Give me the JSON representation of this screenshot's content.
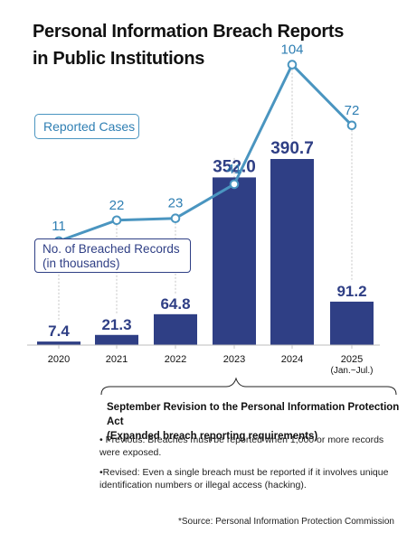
{
  "title": {
    "line1": "Personal Information Breach Reports",
    "line2": "in Public Institutions"
  },
  "legend": {
    "line_label": "Reported Cases",
    "bar_label_line1": "No. of Breached Records",
    "bar_label_line2": "(in thousands)"
  },
  "colors": {
    "bar": "#2f3f85",
    "line": "#4a95c0",
    "line_label": "#2f7fb3"
  },
  "chart_data": {
    "type": "bar",
    "categories": [
      "2020",
      "2021",
      "2022",
      "2023",
      "2024",
      "2025"
    ],
    "category_sublabels": [
      "",
      "",
      "",
      "",
      "",
      "(Jan.~Jul.)"
    ],
    "series": [
      {
        "name": "No. of Breached Records (in thousands)",
        "type": "bar",
        "values": [
          7.4,
          21.3,
          64.8,
          352.0,
          390.7,
          91.2
        ],
        "labels": [
          "7.4",
          "21.3",
          "64.8",
          "352.0",
          "390.7",
          "91.2"
        ]
      },
      {
        "name": "Reported Cases",
        "type": "line",
        "values": [
          11,
          22,
          23,
          41,
          104,
          72
        ],
        "labels": [
          "11",
          "22",
          "23",
          "41",
          "104",
          "72"
        ]
      }
    ],
    "grid": false
  },
  "note": {
    "heading_line1": "September Revision to the Personal Information Protection Act",
    "heading_line2": "(Expanded breach reporting requirements)",
    "previous": "• Previous: Breaches must be reported when 1,000 or more records were exposed.",
    "revised": "•Revised: Even a single breach must be reported if it involves unique identification numbers or illegal access (hacking)."
  },
  "source": "*Source: Personal Information Protection Commission"
}
